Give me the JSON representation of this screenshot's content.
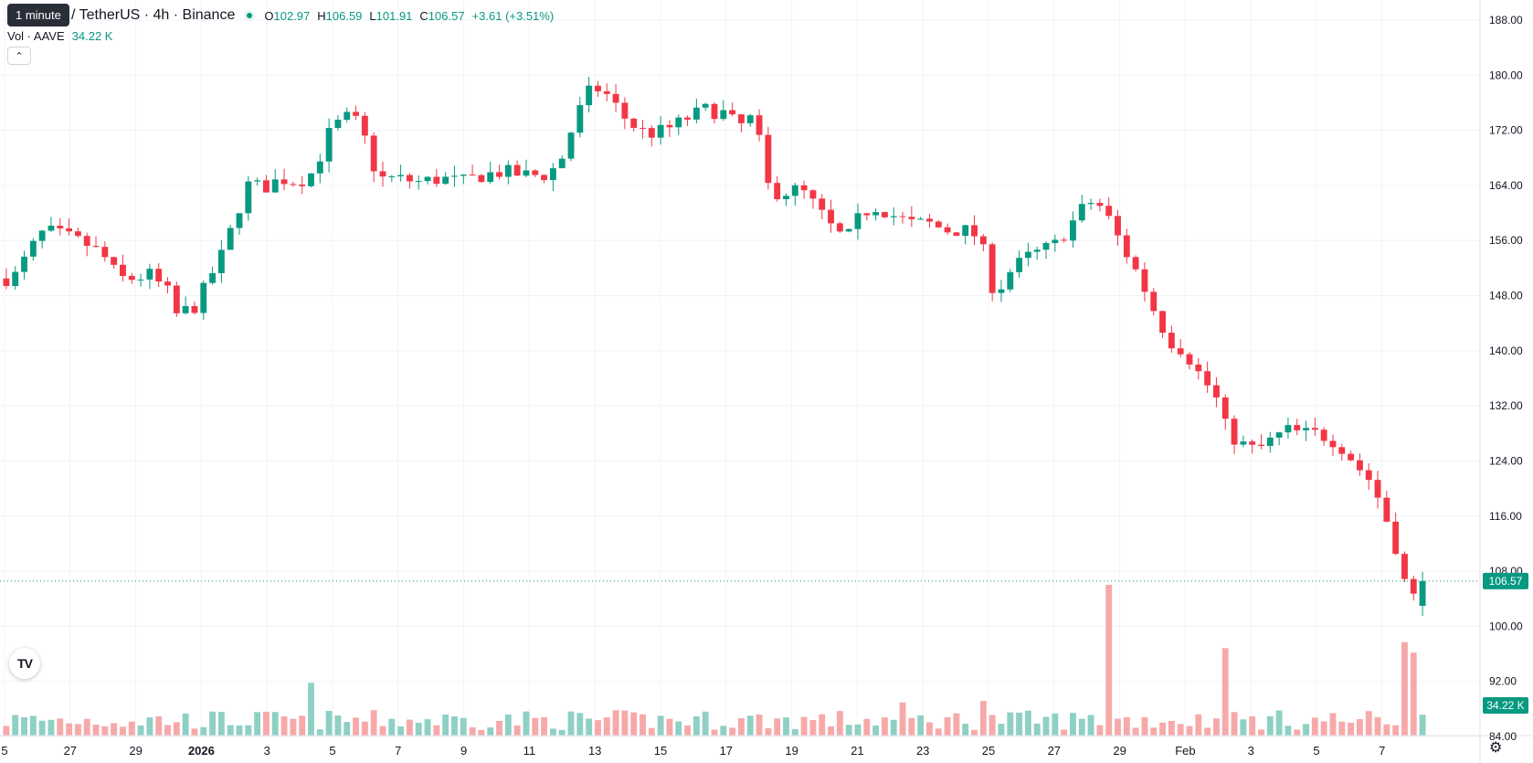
{
  "tooltip": "1 minute",
  "symbol": "/ TetherUS · 4h · Binance",
  "ohlc": {
    "o_label": "O",
    "o": "102.97",
    "h_label": "H",
    "h": "106.59",
    "l_label": "L",
    "l": "101.91",
    "c_label": "C",
    "c": "106.57",
    "change": "+3.61 (+3.51%)"
  },
  "volume_legend": {
    "label": "Vol · AAVE",
    "value": "34.22 K"
  },
  "collapse_icon": "chevron-up-icon",
  "logo": "TV",
  "settings_icon": "gear-icon",
  "colors": {
    "up": "#089981",
    "down": "#f23645",
    "vol_up": "#8ed0c4",
    "vol_down": "#f7a9a9",
    "grid": "#f0f3fa",
    "axis_text": "#131722"
  },
  "chart_data": {
    "type": "candlestick",
    "ylim": [
      84,
      188
    ],
    "y_ticks": [
      "188.00",
      "180.00",
      "172.00",
      "164.00",
      "156.00",
      "148.00",
      "140.00",
      "132.00",
      "124.00",
      "116.00",
      "108.00",
      "100.00",
      "92.00",
      "84.00"
    ],
    "x_ticks": [
      "5",
      "27",
      "29",
      "2026",
      "3",
      "5",
      "7",
      "9",
      "11",
      "13",
      "15",
      "17",
      "19",
      "21",
      "23",
      "25",
      "27",
      "29",
      "Feb",
      "3",
      "5",
      "7"
    ],
    "last_price": "106.57",
    "last_volume": "34.22 K",
    "anchors": [
      [
        0,
        150.5
      ],
      [
        8,
        151
      ],
      [
        18,
        154.5
      ],
      [
        30,
        157.5
      ],
      [
        48,
        156.5
      ],
      [
        62,
        155.5
      ],
      [
        75,
        154
      ],
      [
        88,
        150.5
      ],
      [
        100,
        150.5
      ],
      [
        112,
        151
      ],
      [
        126,
        148.5
      ],
      [
        130,
        145
      ],
      [
        136,
        145.5
      ],
      [
        148,
        146.5
      ],
      [
        160,
        151
      ],
      [
        170,
        154.5
      ],
      [
        180,
        160
      ],
      [
        190,
        164.5
      ],
      [
        200,
        163.5
      ],
      [
        214,
        165
      ],
      [
        228,
        164.5
      ],
      [
        240,
        166
      ],
      [
        252,
        171.5
      ],
      [
        264,
        174
      ],
      [
        276,
        173
      ],
      [
        290,
        165
      ],
      [
        305,
        165
      ],
      [
        322,
        164.5
      ],
      [
        340,
        165
      ],
      [
        356,
        164.5
      ],
      [
        372,
        165.5
      ],
      [
        388,
        166
      ],
      [
        404,
        165.5
      ],
      [
        420,
        165.5
      ],
      [
        432,
        167
      ],
      [
        445,
        174
      ],
      [
        458,
        178.5
      ],
      [
        470,
        177
      ],
      [
        482,
        174
      ],
      [
        494,
        172
      ],
      [
        506,
        171.5
      ],
      [
        520,
        172.5
      ],
      [
        534,
        174
      ],
      [
        546,
        175
      ],
      [
        560,
        174.5
      ],
      [
        572,
        172.5
      ],
      [
        584,
        174
      ],
      [
        596,
        163
      ],
      [
        608,
        163
      ],
      [
        620,
        163.5
      ],
      [
        632,
        161
      ],
      [
        644,
        158
      ],
      [
        656,
        156
      ],
      [
        668,
        160
      ],
      [
        680,
        161
      ],
      [
        694,
        159.5
      ],
      [
        706,
        158.5
      ],
      [
        720,
        158.5
      ],
      [
        734,
        157.5
      ],
      [
        748,
        157.5
      ],
      [
        760,
        156.5
      ],
      [
        772,
        148
      ],
      [
        784,
        151.5
      ],
      [
        796,
        153.5
      ],
      [
        808,
        154.5
      ],
      [
        820,
        155.5
      ],
      [
        830,
        158
      ],
      [
        840,
        160.5
      ],
      [
        850,
        162
      ],
      [
        860,
        159.5
      ],
      [
        872,
        155
      ],
      [
        884,
        151
      ],
      [
        896,
        146
      ],
      [
        908,
        141.5
      ],
      [
        920,
        140
      ],
      [
        932,
        136.5
      ],
      [
        944,
        133.5
      ],
      [
        954,
        128
      ],
      [
        964,
        126.5
      ],
      [
        976,
        125.5
      ],
      [
        988,
        127
      ],
      [
        1000,
        128.5
      ],
      [
        1012,
        128
      ],
      [
        1024,
        128
      ],
      [
        1036,
        127
      ],
      [
        1046,
        125.5
      ],
      [
        1056,
        123
      ],
      [
        1066,
        121
      ],
      [
        1076,
        116.5
      ],
      [
        1086,
        111
      ],
      [
        1094,
        105
      ],
      [
        1100,
        104
      ],
      [
        1106,
        106.57
      ]
    ],
    "volume_spikes": {
      "860": 1.0,
      "950": 0.58,
      "1092": 0.62,
      "1098": 0.55,
      "240": 0.35,
      "700": 0.22,
      "764": 0.23
    }
  }
}
